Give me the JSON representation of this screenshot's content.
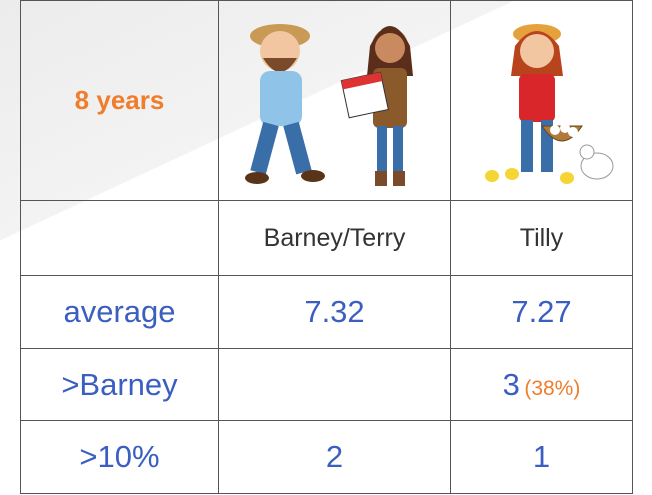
{
  "header": {
    "corner": "8 years"
  },
  "table": {
    "columns": [
      "Barney/Terry",
      "Tilly"
    ],
    "rows": [
      {
        "label": "average",
        "values": [
          7.32,
          7.27
        ]
      },
      {
        "label": ">Barney",
        "values": [
          null,
          3
        ],
        "note": "(38%)"
      },
      {
        "label": ">10%",
        "values": [
          2,
          1
        ]
      }
    ]
  }
}
